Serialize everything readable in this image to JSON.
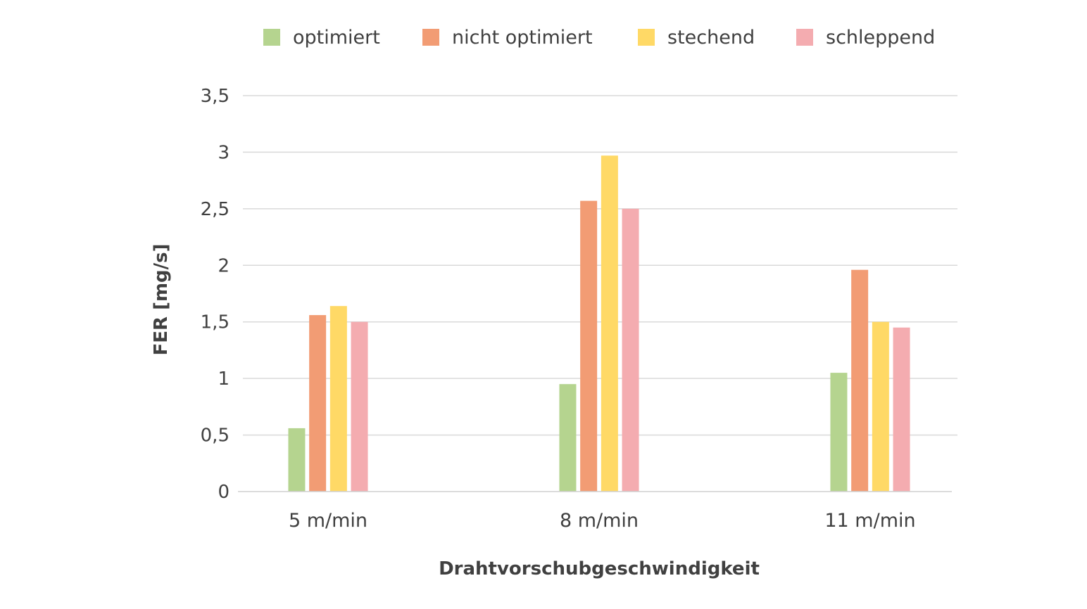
{
  "chart_data": {
    "type": "bar",
    "xlabel": "Drahtvorschubgeschwindigkeit",
    "ylabel": "FER [mg/s]",
    "categories": [
      "5 m/min",
      "8 m/min",
      "11 m/min"
    ],
    "ylim": [
      0,
      3.5
    ],
    "yticks": [
      0,
      0.5,
      1,
      1.5,
      2,
      2.5,
      3,
      3.5
    ],
    "ytick_labels": [
      "0",
      "0,5",
      "1",
      "1,5",
      "2",
      "2,5",
      "3",
      "3,5"
    ],
    "grid": true,
    "legend_position": "top",
    "series": [
      {
        "name": "optimiert",
        "color": "#b5d48f",
        "values": [
          0.56,
          0.95,
          1.05
        ]
      },
      {
        "name": "nicht optimiert",
        "color": "#f29c74",
        "values": [
          1.56,
          2.57,
          1.96
        ]
      },
      {
        "name": "stechend",
        "color": "#ffd966",
        "values": [
          1.64,
          2.97,
          1.5
        ]
      },
      {
        "name": "schleppend",
        "color": "#f4acb0",
        "values": [
          1.5,
          2.5,
          1.45
        ]
      }
    ]
  }
}
